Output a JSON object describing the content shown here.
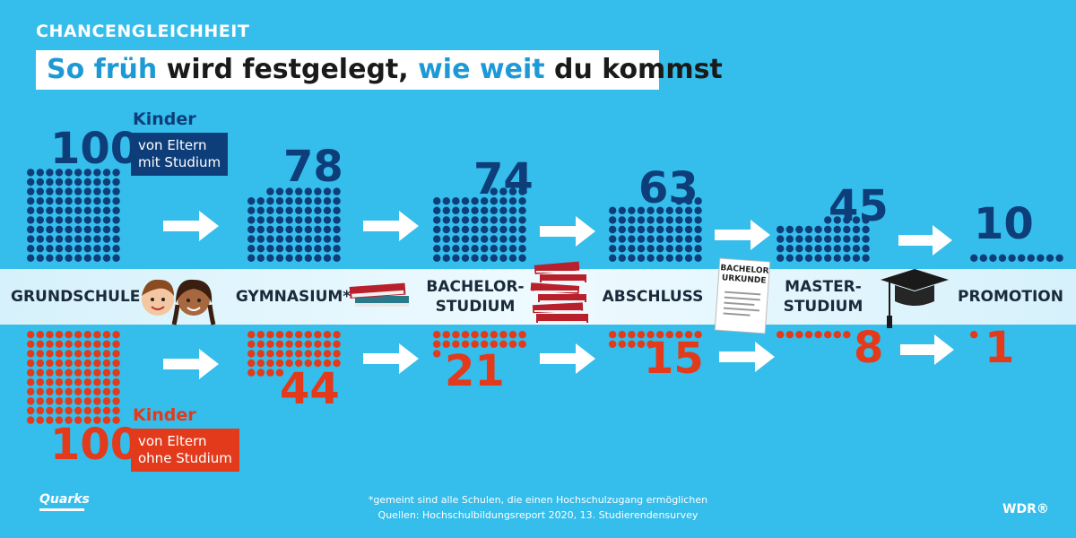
{
  "header": {
    "kicker": "CHANCENGLEICHHEIT",
    "title_part1": "So früh",
    "title_part2": " wird festgelegt, ",
    "title_part3": "wie weit",
    "title_part4": " du kommst"
  },
  "groups": {
    "academic": {
      "kinder": "Kinder",
      "box_line1": "von Eltern",
      "box_line2": "mit Studium",
      "start": "100"
    },
    "non_academic": {
      "kinder": "Kinder",
      "box_line1": "von Eltern",
      "box_line2": "ohne Studium",
      "start": "100"
    }
  },
  "stages": {
    "s0": "GRUNDSCHULE",
    "s1": "GYMNASIUM*",
    "s2_line1": "BACHELOR-",
    "s2_line2": "STUDIUM",
    "s3": "ABSCHLUSS",
    "s4_line1": "MASTER-",
    "s4_line2": "STUDIUM",
    "s5": "PROMOTION"
  },
  "certificate": {
    "line1": "BACHELOR",
    "line2": "URKUNDE"
  },
  "colors": {
    "academic": "#0e3e79",
    "non_academic": "#e23a1a",
    "background": "#35bdeb"
  },
  "footer": {
    "note": "*gemeint sind alle Schulen, die einen Hochschulzugang ermöglichen",
    "source": "Quellen: Hochschulbildungsreport 2020, 13. Studierendensurvey",
    "logo_left": "Quarks",
    "logo_right": "WDR®"
  },
  "chart_data": {
    "type": "bar",
    "categories": [
      "GRUNDSCHULE",
      "GYMNASIUM*",
      "BACHELOR-STUDIUM",
      "ABSCHLUSS",
      "MASTER-STUDIUM",
      "PROMOTION"
    ],
    "series": [
      {
        "name": "von Eltern mit Studium",
        "values": [
          100,
          78,
          74,
          63,
          45,
          10
        ],
        "labels": [
          "100",
          "78",
          "74",
          "63",
          "45",
          "10"
        ]
      },
      {
        "name": "von Eltern ohne Studium",
        "values": [
          100,
          44,
          21,
          15,
          8,
          1
        ],
        "labels": [
          "100",
          "44",
          "21",
          "15",
          "8",
          "1"
        ]
      }
    ]
  }
}
